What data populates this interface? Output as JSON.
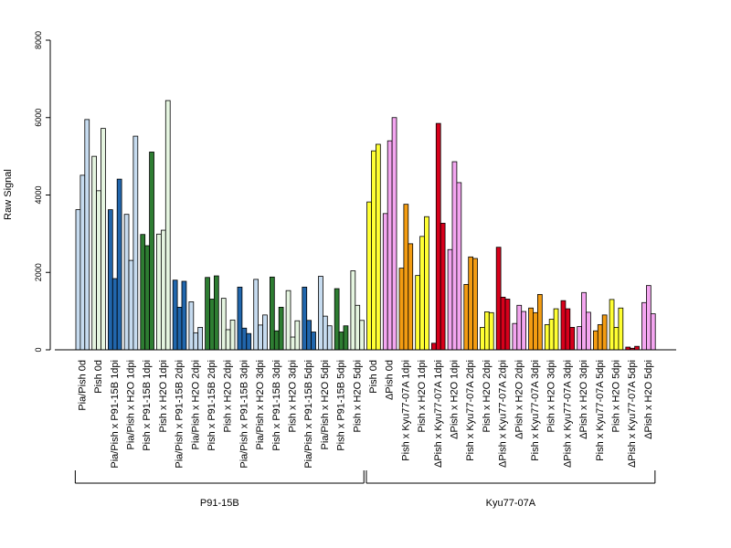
{
  "chart_data": {
    "type": "bar",
    "ylabel": "Raw Signal",
    "ylim": [
      0,
      8000
    ],
    "yticks": [
      0,
      2000,
      4000,
      6000,
      8000
    ],
    "grid": false,
    "categories": [
      {
        "label": "Pia/Pish 0d",
        "values": [
          3620,
          4510,
          5950
        ],
        "colors": [
          "#c6dbef",
          "#c6dbef",
          "#c6dbef"
        ]
      },
      {
        "label": "Pish 0d",
        "values": [
          5000,
          4110,
          5720
        ],
        "colors": [
          "#e5f5e0",
          "#e5f5e0",
          "#e5f5e0"
        ]
      },
      {
        "label": "Pia/Pish x P91-15B 1dpi",
        "values": [
          3620,
          1840,
          4410
        ],
        "colors": [
          "#2166ac",
          "#2166ac",
          "#2166ac"
        ]
      },
      {
        "label": "Pia/Pish x H2O 1dpi",
        "values": [
          3500,
          2310,
          5520
        ],
        "colors": [
          "#c6dbef",
          "#c6dbef",
          "#c6dbef"
        ]
      },
      {
        "label": "Pish x P91-15B 1dpi",
        "values": [
          2980,
          2690,
          5110
        ],
        "colors": [
          "#2e7d32",
          "#2e7d32",
          "#2e7d32"
        ]
      },
      {
        "label": "Pish x H2O 1dpi",
        "values": [
          2990,
          3090,
          6440
        ],
        "colors": [
          "#e5f5e0",
          "#e5f5e0",
          "#e5f5e0"
        ]
      },
      {
        "label": "Pia/Pish x P91-15B 2dpi",
        "values": [
          1800,
          1100,
          1770
        ],
        "colors": [
          "#2166ac",
          "#2166ac",
          "#2166ac"
        ]
      },
      {
        "label": "Pia/Pish x H2O 2dpi",
        "values": [
          1240,
          440,
          580
        ],
        "colors": [
          "#c6dbef",
          "#c6dbef",
          "#c6dbef"
        ]
      },
      {
        "label": "Pish x P91-15B 2dpi",
        "values": [
          1870,
          1310,
          1910
        ],
        "colors": [
          "#2e7d32",
          "#2e7d32",
          "#2e7d32"
        ]
      },
      {
        "label": "Pish x H2O 2dpi",
        "values": [
          1330,
          520,
          770
        ],
        "colors": [
          "#e5f5e0",
          "#e5f5e0",
          "#e5f5e0"
        ]
      },
      {
        "label": "Pia/Pish x P91-15B 3dpi",
        "values": [
          1620,
          560,
          420
        ],
        "colors": [
          "#2166ac",
          "#2166ac",
          "#2166ac"
        ]
      },
      {
        "label": "Pia/Pish x H2O 3dpi",
        "values": [
          1820,
          640,
          900
        ],
        "colors": [
          "#c6dbef",
          "#c6dbef",
          "#c6dbef"
        ]
      },
      {
        "label": "Pish x P91-15B 3dpi",
        "values": [
          1880,
          490,
          1100
        ],
        "colors": [
          "#2e7d32",
          "#2e7d32",
          "#2e7d32"
        ]
      },
      {
        "label": "Pish x H2O 3dpi",
        "values": [
          1530,
          330,
          750
        ],
        "colors": [
          "#e5f5e0",
          "#e5f5e0",
          "#e5f5e0"
        ]
      },
      {
        "label": "Pia/Pish x P91-15B 5dpi",
        "values": [
          1620,
          760,
          460
        ],
        "colors": [
          "#2166ac",
          "#2166ac",
          "#2166ac"
        ]
      },
      {
        "label": "Pia/Pish x H2O 5dpi",
        "values": [
          1900,
          870,
          620
        ],
        "colors": [
          "#c6dbef",
          "#c6dbef",
          "#c6dbef"
        ]
      },
      {
        "label": "Pish x P91-15B 5dpi",
        "values": [
          1580,
          460,
          620
        ],
        "colors": [
          "#2e7d32",
          "#2e7d32",
          "#2e7d32"
        ]
      },
      {
        "label": "Pish x H2O 5dpi",
        "values": [
          2040,
          1150,
          760
        ],
        "colors": [
          "#e5f5e0",
          "#e5f5e0",
          "#e5f5e0"
        ]
      },
      {
        "label": "Pish 0d",
        "values": [
          3820,
          5140,
          5310
        ],
        "colors": [
          "#ffff33",
          "#ffff33",
          "#ffff33"
        ]
      },
      {
        "label": "ΔPish 0d",
        "values": [
          3520,
          5400,
          6000
        ],
        "colors": [
          "#f4a6f0",
          "#f4a6f0",
          "#f4a6f0"
        ]
      },
      {
        "label": "Pish x Kyu77-07A 1dpi",
        "values": [
          2110,
          3760,
          2740
        ],
        "colors": [
          "#f39c12",
          "#f39c12",
          "#f39c12"
        ]
      },
      {
        "label": "Pish x H2O 1dpi",
        "values": [
          1920,
          2930,
          3440
        ],
        "colors": [
          "#ffff33",
          "#ffff33",
          "#ffff33"
        ]
      },
      {
        "label": "ΔPish x Kyu77-07A 1dpi",
        "values": [
          170,
          5850,
          3270
        ],
        "colors": [
          "#d7001b",
          "#d7001b",
          "#d7001b"
        ]
      },
      {
        "label": "ΔPish x H2O 1dpi",
        "values": [
          2590,
          4860,
          4320
        ],
        "colors": [
          "#f4a6f0",
          "#f4a6f0",
          "#f4a6f0"
        ]
      },
      {
        "label": "Pish x Kyu77-07A 2dpi",
        "values": [
          1690,
          2400,
          2360
        ],
        "colors": [
          "#f39c12",
          "#f39c12",
          "#f39c12"
        ]
      },
      {
        "label": "Pish x H2O 2dpi",
        "values": [
          580,
          980,
          960
        ],
        "colors": [
          "#ffff33",
          "#ffff33",
          "#ffff33"
        ]
      },
      {
        "label": "ΔPish x Kyu77-07A 2dpi",
        "values": [
          2650,
          1360,
          1310
        ],
        "colors": [
          "#d7001b",
          "#d7001b",
          "#d7001b"
        ]
      },
      {
        "label": "ΔPish x H2O 2dpi",
        "values": [
          680,
          1150,
          990
        ],
        "colors": [
          "#f4a6f0",
          "#f4a6f0",
          "#f4a6f0"
        ]
      },
      {
        "label": "Pish x Kyu77-07A 3dpi",
        "values": [
          1080,
          960,
          1430
        ],
        "colors": [
          "#f39c12",
          "#f39c12",
          "#f39c12"
        ]
      },
      {
        "label": "Pish x H2O 3dpi",
        "values": [
          650,
          790,
          1060
        ],
        "colors": [
          "#ffff33",
          "#ffff33",
          "#ffff33"
        ]
      },
      {
        "label": "ΔPish x Kyu77-07A 3dpi",
        "values": [
          1270,
          1060,
          580
        ],
        "colors": [
          "#d7001b",
          "#d7001b",
          "#d7001b"
        ]
      },
      {
        "label": "ΔPish x H2O 3dpi",
        "values": [
          600,
          1480,
          970
        ],
        "colors": [
          "#f4a6f0",
          "#f4a6f0",
          "#f4a6f0"
        ]
      },
      {
        "label": "Pish x Kyu77-07A 5dpi",
        "values": [
          490,
          650,
          900
        ],
        "colors": [
          "#f39c12",
          "#f39c12",
          "#f39c12"
        ]
      },
      {
        "label": "Pish x H2O 5dpi",
        "values": [
          1300,
          580,
          1080
        ],
        "colors": [
          "#ffff33",
          "#ffff33",
          "#ffff33"
        ]
      },
      {
        "label": "ΔPish x Kyu77-07A 5dpi",
        "values": [
          70,
          40,
          90
        ],
        "colors": [
          "#d7001b",
          "#d7001b",
          "#d7001b"
        ]
      },
      {
        "label": "ΔPish x H2O 5dpi",
        "values": [
          1220,
          1660,
          930
        ],
        "colors": [
          "#f4a6f0",
          "#f4a6f0",
          "#f4a6f0"
        ]
      }
    ],
    "groups": [
      {
        "label": "P91-15B",
        "from": 0,
        "to": 17
      },
      {
        "label": "Kyu77-07A",
        "from": 18,
        "to": 35
      }
    ]
  }
}
